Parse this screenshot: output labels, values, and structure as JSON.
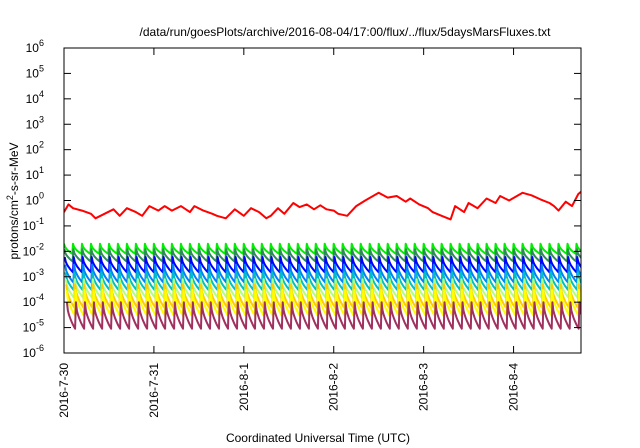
{
  "chart_data": {
    "type": "line",
    "title": "/data/run/goesPlots/archive/2016-08-04/17:00/flux/../flux/5daysMarsFluxes.txt",
    "xlabel": "Coordinated Universal Time (UTC)",
    "ylabel": "protons/cm²-s-sr-MeV",
    "ylabel_parts": {
      "pre": "protons/cm",
      "sup": "2",
      "post": "-s-sr-MeV"
    },
    "x_ticks": [
      "2016-7-30",
      "2016-7-31",
      "2016-8-1",
      "2016-8-2",
      "2016-8-3",
      "2016-8-4"
    ],
    "xlim_days": [
      0,
      5.75
    ],
    "y_scale": "log",
    "ylim": [
      1e-06,
      1000000.0
    ],
    "y_tick_labels": [
      {
        "base": "10",
        "exp": "-6"
      },
      {
        "base": "10",
        "exp": "-5"
      },
      {
        "base": "10",
        "exp": "-4"
      },
      {
        "base": "10",
        "exp": "-3"
      },
      {
        "base": "10",
        "exp": "-2"
      },
      {
        "base": "10",
        "exp": "-1"
      },
      {
        "base": "10",
        "exp": "0"
      },
      {
        "base": "10",
        "exp": "1"
      },
      {
        "base": "10",
        "exp": "2"
      },
      {
        "base": "10",
        "exp": "3"
      },
      {
        "base": "10",
        "exp": "4"
      },
      {
        "base": "10",
        "exp": "5"
      },
      {
        "base": "10",
        "exp": "6"
      }
    ],
    "grid": false,
    "legend": "none",
    "sawtooth_series": [
      {
        "color": "#00ee00",
        "peak": 0.02,
        "trough": 0.008
      },
      {
        "color": "#2e8b57",
        "peak": 0.012,
        "trough": 0.004
      },
      {
        "color": "#0000ff",
        "peak": 0.006,
        "trough": 0.0015
      },
      {
        "color": "#0080ff",
        "peak": 0.003,
        "trough": 0.0006
      },
      {
        "color": "#00c0c0",
        "peak": 0.0015,
        "trough": 0.0003
      },
      {
        "color": "#b0ff80",
        "peak": 0.0008,
        "trough": 0.00015
      },
      {
        "color": "#ffcc00",
        "peak": 0.0005,
        "trough": 6e-05
      },
      {
        "color": "#ffff00",
        "peak": 0.0003,
        "trough": 3e-05
      },
      {
        "color": "#a03060",
        "peak": 0.0001,
        "trough": 9e-06
      }
    ],
    "sawtooth_period_days": 0.1,
    "red_series": {
      "color": "#ff0000",
      "x": [
        0,
        0.05,
        0.1,
        0.2,
        0.3,
        0.35,
        0.45,
        0.55,
        0.62,
        0.7,
        0.8,
        0.87,
        0.95,
        1.05,
        1.12,
        1.2,
        1.3,
        1.4,
        1.45,
        1.55,
        1.65,
        1.7,
        1.8,
        1.9,
        2.0,
        2.08,
        2.17,
        2.25,
        2.3,
        2.38,
        2.45,
        2.55,
        2.62,
        2.7,
        2.78,
        2.85,
        2.92,
        3.0,
        3.05,
        3.15,
        3.25,
        3.35,
        3.5,
        3.6,
        3.7,
        3.8,
        3.85,
        3.95,
        4.05,
        4.1,
        4.2,
        4.3,
        4.35,
        4.45,
        4.5,
        4.6,
        4.7,
        4.8,
        4.85,
        4.95,
        5.1,
        5.2,
        5.3,
        5.4,
        5.45,
        5.5,
        5.58,
        5.65,
        5.72,
        5.75
      ],
      "y": [
        0.35,
        0.7,
        0.5,
        0.4,
        0.3,
        0.2,
        0.3,
        0.45,
        0.25,
        0.5,
        0.35,
        0.25,
        0.6,
        0.4,
        0.6,
        0.4,
        0.6,
        0.35,
        0.6,
        0.4,
        0.3,
        0.25,
        0.2,
        0.45,
        0.25,
        0.5,
        0.35,
        0.2,
        0.25,
        0.5,
        0.3,
        0.8,
        0.55,
        0.7,
        0.45,
        0.65,
        0.45,
        0.4,
        0.3,
        0.25,
        0.6,
        1.0,
        2.0,
        1.3,
        1.5,
        0.9,
        1.2,
        0.7,
        0.5,
        0.35,
        0.25,
        0.18,
        0.6,
        0.35,
        0.8,
        0.5,
        1.2,
        0.8,
        1.5,
        1.0,
        2.0,
        1.6,
        1.1,
        0.8,
        0.6,
        0.4,
        0.9,
        0.6,
        1.8,
        2.2
      ]
    }
  }
}
